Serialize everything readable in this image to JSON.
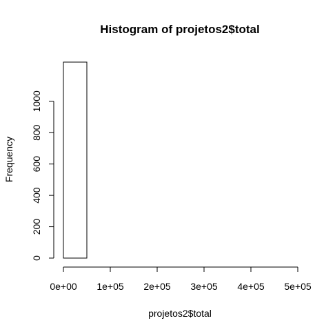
{
  "chart_data": {
    "type": "bar",
    "title": "Histogram of projetos2$total",
    "xlabel": "projetos2$total",
    "ylabel": "Frequency",
    "bins": [
      {
        "start": 0,
        "end": 50000,
        "count": 1250
      },
      {
        "start": 50000,
        "end": 100000,
        "count": 0
      },
      {
        "start": 100000,
        "end": 150000,
        "count": 0
      },
      {
        "start": 150000,
        "end": 200000,
        "count": 0
      },
      {
        "start": 200000,
        "end": 250000,
        "count": 0
      },
      {
        "start": 250000,
        "end": 300000,
        "count": 0
      },
      {
        "start": 300000,
        "end": 350000,
        "count": 0
      },
      {
        "start": 350000,
        "end": 400000,
        "count": 0
      },
      {
        "start": 400000,
        "end": 450000,
        "count": 0
      },
      {
        "start": 450000,
        "end": 500000,
        "count": 0
      }
    ],
    "xlim": [
      0,
      500000
    ],
    "ylim": [
      0,
      1250
    ],
    "x_ticks": [
      0,
      100000,
      200000,
      300000,
      400000,
      500000
    ],
    "x_tick_labels": [
      "0e+00",
      "1e+05",
      "2e+05",
      "3e+05",
      "4e+05",
      "5e+05"
    ],
    "y_ticks": [
      0,
      200,
      400,
      600,
      800,
      1000
    ],
    "y_tick_labels": [
      "0",
      "200",
      "400",
      "600",
      "800",
      "1000"
    ],
    "bar_fill": "#ffffff",
    "bar_stroke": "#000000",
    "grid": false
  }
}
